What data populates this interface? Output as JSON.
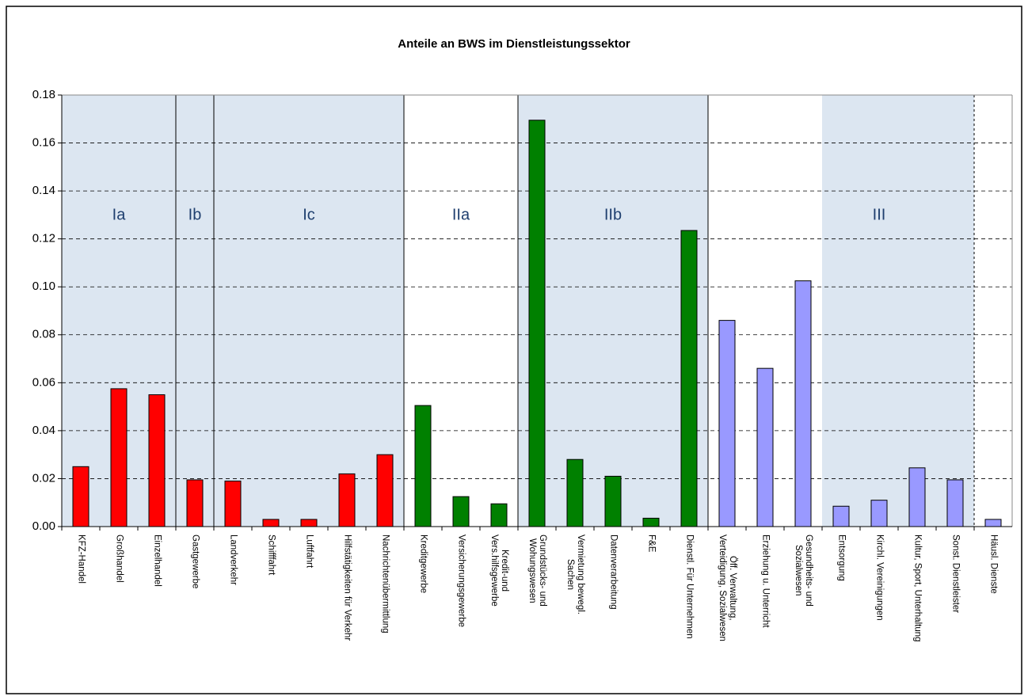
{
  "chart_data": {
    "type": "bar",
    "title": "Anteile an BWS im Dienstleistungssektor",
    "categories": [
      "KFZ-Handel",
      "Großhandel",
      "Einzelhandel",
      "Gastgewerbe",
      "Landverkehr",
      "Schifffahrt",
      "Luftfahrt",
      "Hilfstätigkeiten für Verkehr",
      "Nachrichtenübermittlung",
      "Kreditgewerbe",
      "Versicherungsgewerbe",
      "Kredit-und\nVers.hilfsgewerbe",
      "Grundstücks- und\nWohungswesen",
      "Vermietung bewegl.\nSachen",
      "Datenverarbeitung",
      "F&E",
      "Dienstl. Für Unternehmen",
      "Öff. Verwaltung,\nVerteidigung, Sozialwesen",
      "Erziehung u. Unterricht",
      "Gesundheits- und\nSozialwesen",
      "Entsorgung",
      "Kirchl. Vereinigungen",
      "Kultur, Sport, Unterhaltung",
      "Sonst. Dienstleister",
      "Häusl. Dienste"
    ],
    "values": [
      0.025,
      0.0575,
      0.055,
      0.0195,
      0.019,
      0.003,
      0.003,
      0.022,
      0.03,
      0.0505,
      0.0125,
      0.0095,
      0.1695,
      0.028,
      0.021,
      0.0035,
      0.1235,
      0.086,
      0.066,
      0.1025,
      0.0085,
      0.011,
      0.0245,
      0.0195,
      0.003
    ],
    "colors": [
      "#ff0000",
      "#ff0000",
      "#ff0000",
      "#ff0000",
      "#ff0000",
      "#ff0000",
      "#ff0000",
      "#ff0000",
      "#ff0000",
      "#008000",
      "#008000",
      "#008000",
      "#008000",
      "#008000",
      "#008000",
      "#008000",
      "#008000",
      "#9999ff",
      "#9999ff",
      "#9999ff",
      "#9999ff",
      "#9999ff",
      "#9999ff",
      "#9999ff",
      "#9999ff"
    ],
    "ylim": [
      0,
      0.18
    ],
    "yticks": [
      {
        "value": 0,
        "label": "0.00"
      },
      0.02,
      0.04,
      0.06,
      0.08,
      {
        "value": 0.1,
        "label": "0.10"
      },
      0.12,
      0.14,
      0.16,
      0.18
    ],
    "grid": true,
    "section_labels": [
      "Ia",
      "Ib",
      "Ic",
      "IIa",
      "IIb",
      "III"
    ]
  }
}
